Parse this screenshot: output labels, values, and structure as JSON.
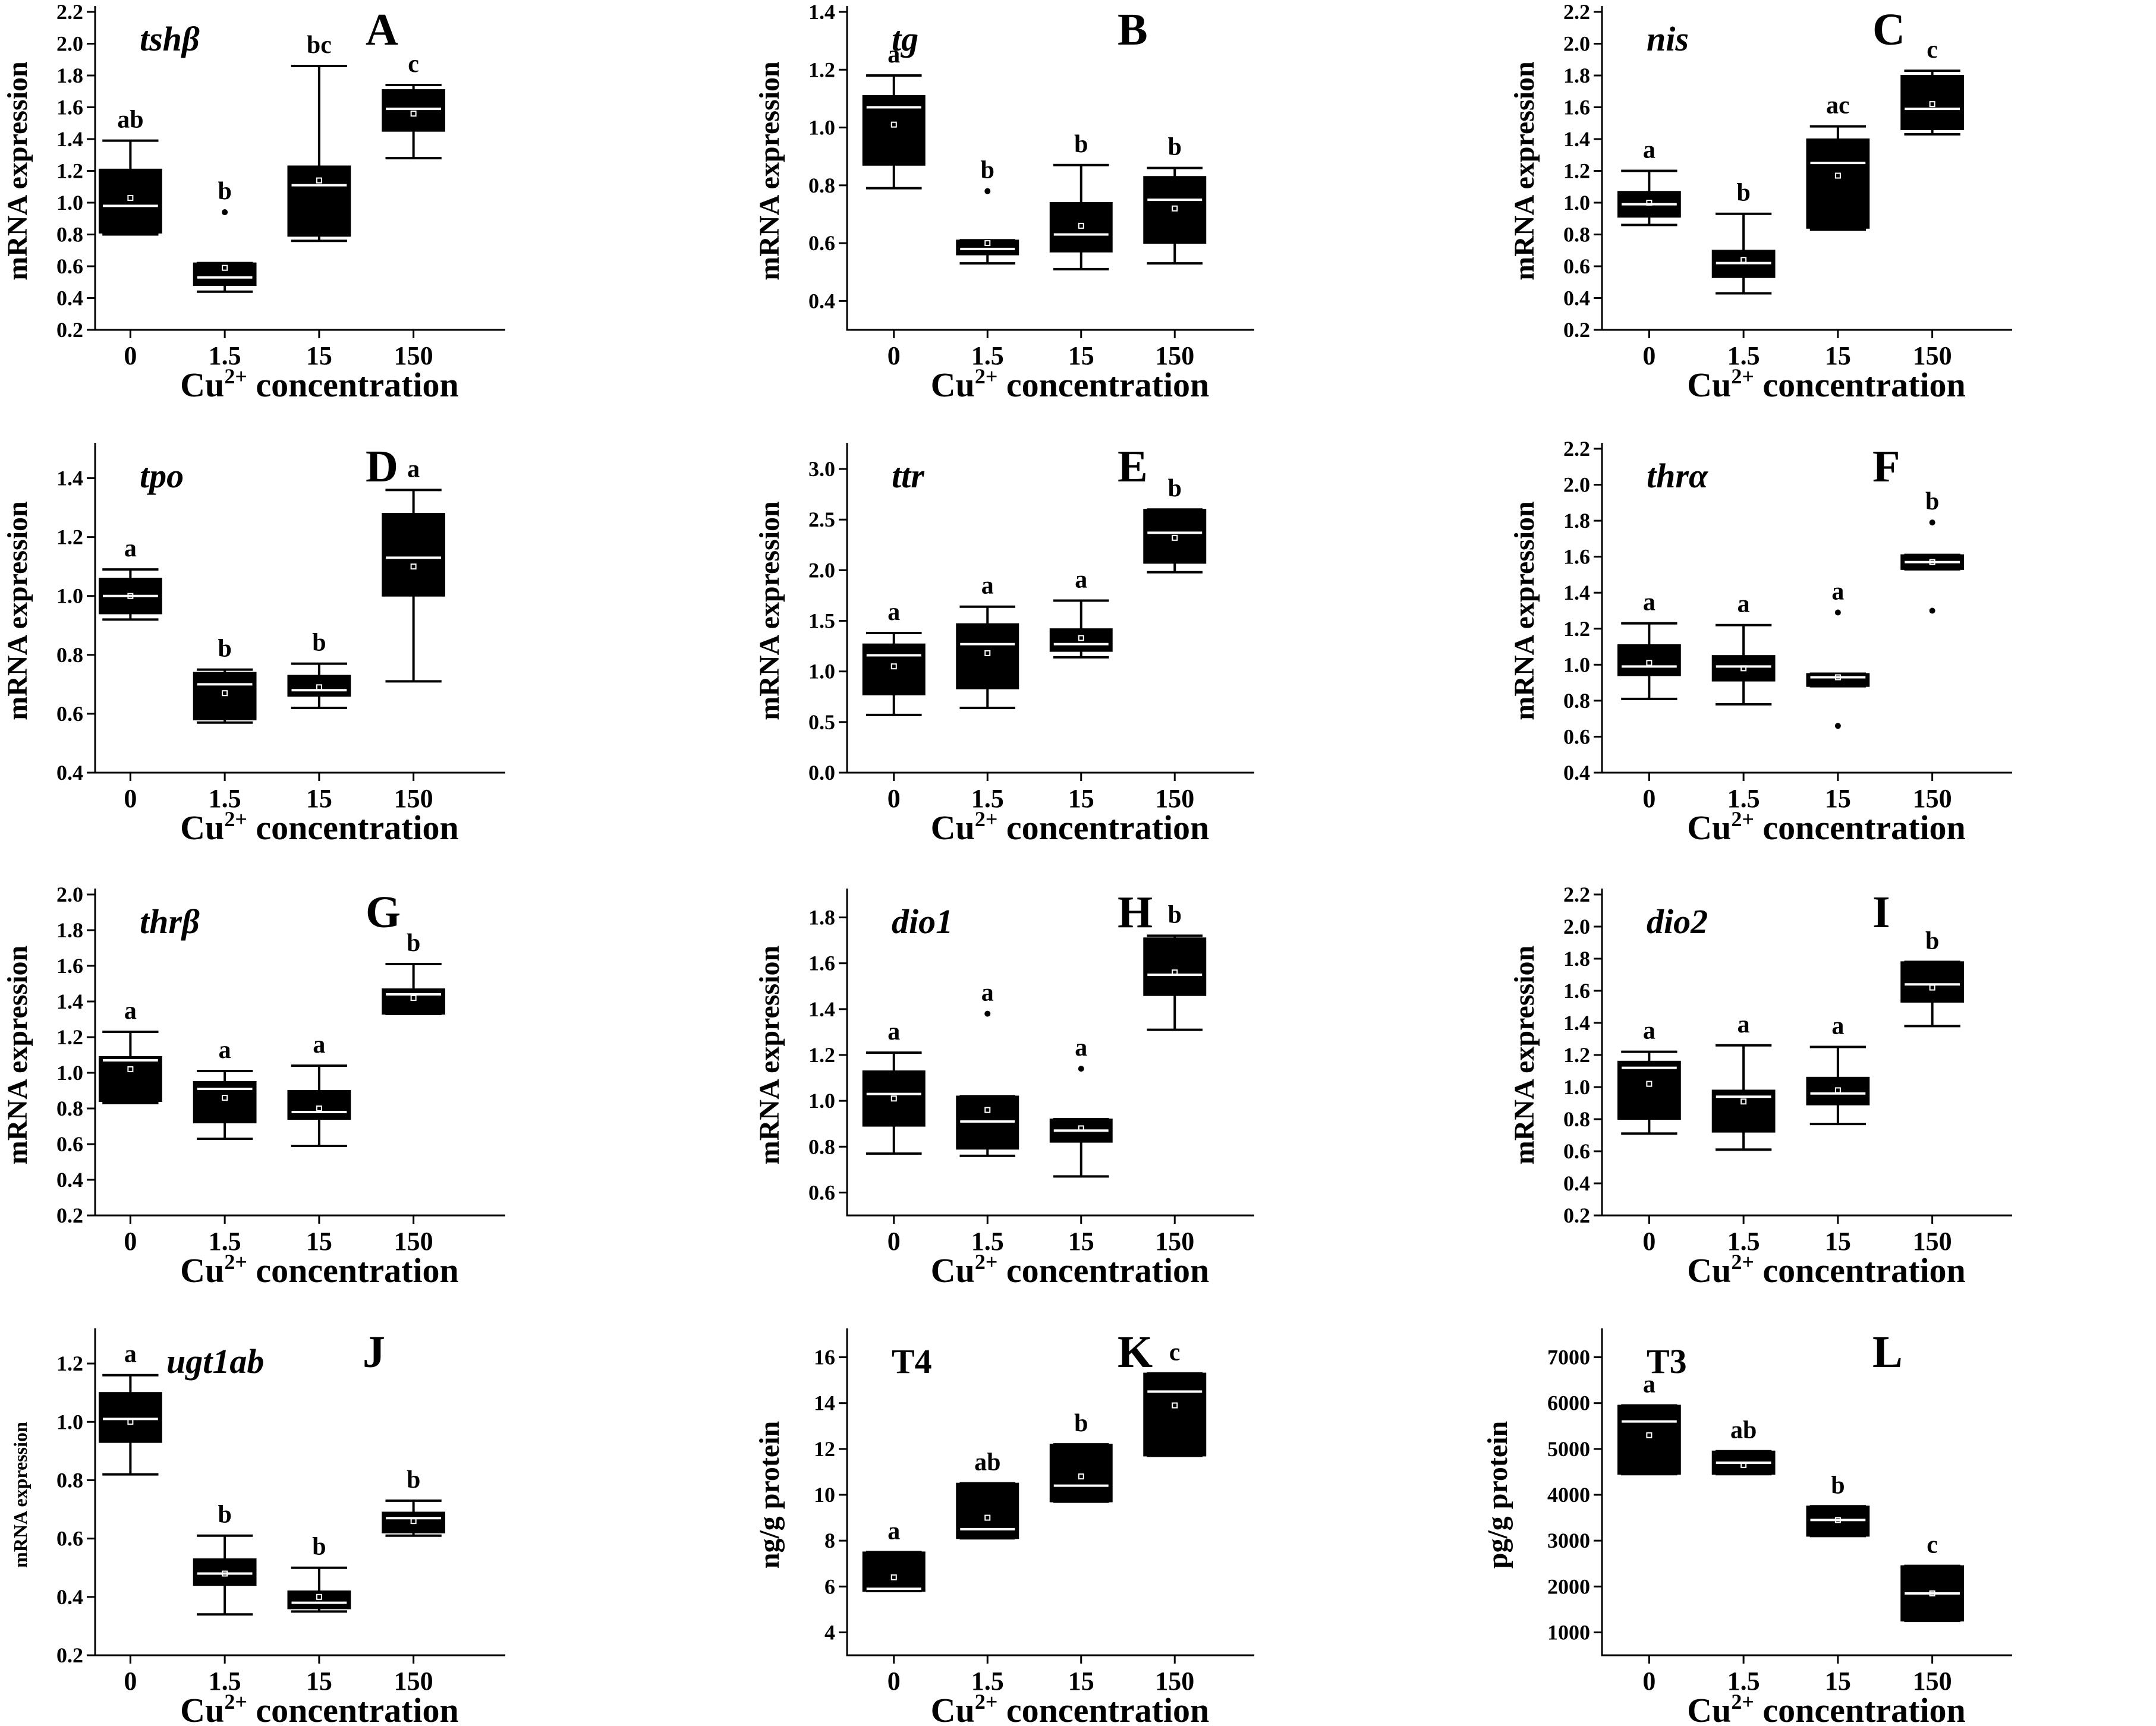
{
  "chart_data": [
    {
      "type": "box",
      "panel": "A",
      "title": "tshβ",
      "title_style": "italic",
      "ylabel": "mRNA expression",
      "xlabel": "Cu",
      "xlabel_sup": "2+",
      "xlabel_rest": " concentration",
      "categories": [
        "0",
        "1.5",
        "15",
        "150"
      ],
      "ylim": [
        0.2,
        2.2
      ],
      "yticks": [
        "0.2",
        "0.4",
        "0.6",
        "0.8",
        "1.0",
        "1.2",
        "1.4",
        "1.6",
        "1.8",
        "2.0",
        "2.2"
      ],
      "boxes": [
        {
          "whislo": 0.8,
          "q1": 0.81,
          "med": 0.98,
          "q3": 1.21,
          "whishi": 1.39,
          "mean": 1.03,
          "outliers": [],
          "sig": "ab"
        },
        {
          "whislo": 0.44,
          "q1": 0.48,
          "med": 0.53,
          "q3": 0.62,
          "whishi": 0.62,
          "mean": 0.59,
          "outliers": [
            0.94
          ],
          "sig": "b"
        },
        {
          "whislo": 0.76,
          "q1": 0.79,
          "med": 1.11,
          "q3": 1.23,
          "whishi": 1.86,
          "mean": 1.14,
          "outliers": [],
          "sig": "bc"
        },
        {
          "whislo": 1.28,
          "q1": 1.45,
          "med": 1.59,
          "q3": 1.71,
          "whishi": 1.74,
          "mean": 1.56,
          "outliers": [],
          "sig": "c"
        }
      ]
    },
    {
      "type": "box",
      "panel": "B",
      "title": "tg",
      "title_style": "italic",
      "ylabel": "mRNA expression",
      "xlabel": "Cu",
      "xlabel_sup": "2+",
      "xlabel_rest": " concentration",
      "categories": [
        "0",
        "1.5",
        "15",
        "150"
      ],
      "ylim": [
        0.3,
        1.4
      ],
      "yticks": [
        "0.4",
        "0.6",
        "0.8",
        "1.0",
        "1.2",
        "1.4"
      ],
      "boxes": [
        {
          "whislo": 0.79,
          "q1": 0.87,
          "med": 1.07,
          "q3": 1.11,
          "whishi": 1.18,
          "mean": 1.01,
          "outliers": [],
          "sig": "a"
        },
        {
          "whislo": 0.53,
          "q1": 0.56,
          "med": 0.58,
          "q3": 0.61,
          "whishi": 0.61,
          "mean": 0.6,
          "outliers": [
            0.78
          ],
          "sig": "b"
        },
        {
          "whislo": 0.51,
          "q1": 0.57,
          "med": 0.63,
          "q3": 0.74,
          "whishi": 0.87,
          "mean": 0.66,
          "outliers": [],
          "sig": "b"
        },
        {
          "whislo": 0.53,
          "q1": 0.6,
          "med": 0.75,
          "q3": 0.83,
          "whishi": 0.86,
          "mean": 0.72,
          "outliers": [],
          "sig": "b"
        }
      ]
    },
    {
      "type": "box",
      "panel": "C",
      "title": "nis",
      "title_style": "italic",
      "ylabel": "mRNA expression",
      "xlabel": "Cu",
      "xlabel_sup": "2+",
      "xlabel_rest": " concentration",
      "categories": [
        "0",
        "1.5",
        "15",
        "150"
      ],
      "ylim": [
        0.2,
        2.2
      ],
      "yticks": [
        "0.2",
        "0.4",
        "0.6",
        "0.8",
        "1.0",
        "1.2",
        "1.4",
        "1.6",
        "1.8",
        "2.0",
        "2.2"
      ],
      "boxes": [
        {
          "whislo": 0.86,
          "q1": 0.91,
          "med": 0.99,
          "q3": 1.07,
          "whishi": 1.2,
          "mean": 1.0,
          "outliers": [],
          "sig": "a"
        },
        {
          "whislo": 0.43,
          "q1": 0.53,
          "med": 0.62,
          "q3": 0.7,
          "whishi": 0.93,
          "mean": 0.64,
          "outliers": [],
          "sig": "b"
        },
        {
          "whislo": 0.83,
          "q1": 0.84,
          "med": 1.25,
          "q3": 1.4,
          "whishi": 1.48,
          "mean": 1.17,
          "outliers": [],
          "sig": "ac"
        },
        {
          "whislo": 1.43,
          "q1": 1.46,
          "med": 1.59,
          "q3": 1.8,
          "whishi": 1.83,
          "mean": 1.62,
          "outliers": [],
          "sig": "c"
        }
      ]
    },
    {
      "type": "box",
      "panel": "D",
      "title": "tpo",
      "title_style": "italic",
      "ylabel": "mRNA expression",
      "xlabel": "Cu",
      "xlabel_sup": "2+",
      "xlabel_rest": " concentration",
      "categories": [
        "0",
        "1.5",
        "15",
        "150"
      ],
      "ylim": [
        0.4,
        1.5
      ],
      "yticks": [
        "0.4",
        "0.6",
        "0.8",
        "1.0",
        "1.2",
        "1.4"
      ],
      "boxes": [
        {
          "whislo": 0.92,
          "q1": 0.94,
          "med": 1.0,
          "q3": 1.06,
          "whishi": 1.09,
          "mean": 1.0,
          "outliers": [],
          "sig": "a"
        },
        {
          "whislo": 0.57,
          "q1": 0.58,
          "med": 0.7,
          "q3": 0.74,
          "whishi": 0.75,
          "mean": 0.67,
          "outliers": [],
          "sig": "b"
        },
        {
          "whislo": 0.62,
          "q1": 0.66,
          "med": 0.68,
          "q3": 0.73,
          "whishi": 0.77,
          "mean": 0.69,
          "outliers": [],
          "sig": "b"
        },
        {
          "whislo": 0.71,
          "q1": 1.0,
          "med": 1.13,
          "q3": 1.28,
          "whishi": 1.36,
          "mean": 1.1,
          "outliers": [],
          "sig": "a"
        }
      ]
    },
    {
      "type": "box",
      "panel": "E",
      "title": "ttr",
      "title_style": "italic",
      "ylabel": "mRNA expression",
      "xlabel": "Cu",
      "xlabel_sup": "2+",
      "xlabel_rest": " concentration",
      "categories": [
        "0",
        "1.5",
        "15",
        "150"
      ],
      "ylim": [
        0.0,
        3.2
      ],
      "yticks": [
        "0.0",
        "0.5",
        "1.0",
        "1.5",
        "2.0",
        "2.5",
        "3.0"
      ],
      "boxes": [
        {
          "whislo": 0.57,
          "q1": 0.77,
          "med": 1.16,
          "q3": 1.27,
          "whishi": 1.38,
          "mean": 1.05,
          "outliers": [],
          "sig": "a"
        },
        {
          "whislo": 0.64,
          "q1": 0.83,
          "med": 1.27,
          "q3": 1.47,
          "whishi": 1.64,
          "mean": 1.18,
          "outliers": [],
          "sig": "a"
        },
        {
          "whislo": 1.14,
          "q1": 1.2,
          "med": 1.27,
          "q3": 1.42,
          "whishi": 1.7,
          "mean": 1.33,
          "outliers": [],
          "sig": "a"
        },
        {
          "whislo": 1.98,
          "q1": 2.07,
          "med": 2.37,
          "q3": 2.6,
          "whishi": 2.6,
          "mean": 2.32,
          "outliers": [],
          "sig": "b"
        }
      ]
    },
    {
      "type": "box",
      "panel": "F",
      "title": "thrα",
      "title_style": "italic",
      "ylabel": "mRNA expression",
      "xlabel": "Cu",
      "xlabel_sup": "2+",
      "xlabel_rest": " concentration",
      "categories": [
        "0",
        "1.5",
        "15",
        "150"
      ],
      "ylim": [
        0.4,
        2.2
      ],
      "yticks": [
        "0.4",
        "0.6",
        "0.8",
        "1.0",
        "1.2",
        "1.4",
        "1.6",
        "1.8",
        "2.0",
        "2.2"
      ],
      "boxes": [
        {
          "whislo": 0.81,
          "q1": 0.94,
          "med": 0.99,
          "q3": 1.11,
          "whishi": 1.23,
          "mean": 1.01,
          "outliers": [],
          "sig": "a"
        },
        {
          "whislo": 0.78,
          "q1": 0.91,
          "med": 0.99,
          "q3": 1.05,
          "whishi": 1.22,
          "mean": 0.98,
          "outliers": [],
          "sig": "a"
        },
        {
          "whislo": 0.88,
          "q1": 0.88,
          "med": 0.93,
          "q3": 0.95,
          "whishi": 0.95,
          "mean": 0.93,
          "outliers": [
            1.29,
            0.66
          ],
          "sig": "a"
        },
        {
          "whislo": 1.53,
          "q1": 1.53,
          "med": 1.57,
          "q3": 1.61,
          "whishi": 1.61,
          "mean": 1.57,
          "outliers": [
            1.79,
            1.3
          ],
          "sig": "b"
        }
      ]
    },
    {
      "type": "box",
      "panel": "G",
      "title": "thrβ",
      "title_style": "italic",
      "ylabel": "mRNA expression",
      "xlabel": "Cu",
      "xlabel_sup": "2+",
      "xlabel_rest": " concentration",
      "categories": [
        "0",
        "1.5",
        "15",
        "150"
      ],
      "ylim": [
        0.2,
        2.0
      ],
      "yticks": [
        "0.2",
        "0.4",
        "0.6",
        "0.8",
        "1.0",
        "1.2",
        "1.4",
        "1.6",
        "1.8",
        "2.0"
      ],
      "boxes": [
        {
          "whislo": 0.83,
          "q1": 0.84,
          "med": 1.07,
          "q3": 1.09,
          "whishi": 1.23,
          "mean": 1.02,
          "outliers": [],
          "sig": "a"
        },
        {
          "whislo": 0.63,
          "q1": 0.72,
          "med": 0.91,
          "q3": 0.95,
          "whishi": 1.01,
          "mean": 0.86,
          "outliers": [],
          "sig": "a"
        },
        {
          "whislo": 0.59,
          "q1": 0.74,
          "med": 0.78,
          "q3": 0.9,
          "whishi": 1.04,
          "mean": 0.8,
          "outliers": [],
          "sig": "a"
        },
        {
          "whislo": 1.33,
          "q1": 1.33,
          "med": 1.44,
          "q3": 1.47,
          "whishi": 1.61,
          "mean": 1.42,
          "outliers": [],
          "sig": "b"
        }
      ]
    },
    {
      "type": "box",
      "panel": "H",
      "title": "dio1",
      "title_style": "italic",
      "ylabel": "mRNA expression",
      "xlabel": "Cu",
      "xlabel_sup": "2+",
      "xlabel_rest": " concentration",
      "categories": [
        "0",
        "1.5",
        "15",
        "150"
      ],
      "ylim": [
        0.5,
        1.9
      ],
      "yticks": [
        "0.6",
        "0.8",
        "1.0",
        "1.2",
        "1.4",
        "1.6",
        "1.8"
      ],
      "boxes": [
        {
          "whislo": 0.77,
          "q1": 0.89,
          "med": 1.03,
          "q3": 1.13,
          "whishi": 1.21,
          "mean": 1.01,
          "outliers": [],
          "sig": "a"
        },
        {
          "whislo": 0.76,
          "q1": 0.79,
          "med": 0.91,
          "q3": 1.02,
          "whishi": 1.02,
          "mean": 0.96,
          "outliers": [
            1.38
          ],
          "sig": "a"
        },
        {
          "whislo": 0.67,
          "q1": 0.82,
          "med": 0.87,
          "q3": 0.92,
          "whishi": 0.92,
          "mean": 0.88,
          "outliers": [
            1.14
          ],
          "sig": "a"
        },
        {
          "whislo": 1.31,
          "q1": 1.46,
          "med": 1.55,
          "q3": 1.71,
          "whishi": 1.72,
          "mean": 1.56,
          "outliers": [],
          "sig": "b"
        }
      ]
    },
    {
      "type": "box",
      "panel": "I",
      "title": "dio2",
      "title_style": "italic",
      "ylabel": "mRNA expression",
      "xlabel": "Cu",
      "xlabel_sup": "2+",
      "xlabel_rest": " concentration",
      "categories": [
        "0",
        "1.5",
        "15",
        "150"
      ],
      "ylim": [
        0.2,
        2.2
      ],
      "yticks": [
        "0.2",
        "0.4",
        "0.6",
        "0.8",
        "1.0",
        "1.2",
        "1.4",
        "1.6",
        "1.8",
        "2.0",
        "2.2"
      ],
      "boxes": [
        {
          "whislo": 0.71,
          "q1": 0.8,
          "med": 1.12,
          "q3": 1.16,
          "whishi": 1.22,
          "mean": 1.02,
          "outliers": [],
          "sig": "a"
        },
        {
          "whislo": 0.61,
          "q1": 0.72,
          "med": 0.94,
          "q3": 0.98,
          "whishi": 1.26,
          "mean": 0.91,
          "outliers": [],
          "sig": "a"
        },
        {
          "whislo": 0.77,
          "q1": 0.89,
          "med": 0.96,
          "q3": 1.06,
          "whishi": 1.25,
          "mean": 0.98,
          "outliers": [],
          "sig": "a"
        },
        {
          "whislo": 1.38,
          "q1": 1.53,
          "med": 1.64,
          "q3": 1.78,
          "whishi": 1.78,
          "mean": 1.62,
          "outliers": [],
          "sig": "b"
        }
      ]
    },
    {
      "type": "box",
      "panel": "J",
      "title": "ugt1ab",
      "title_style": "italic",
      "ylabel": "mRNA expression",
      "ylabel_small": true,
      "xlabel": "Cu",
      "xlabel_sup": "2+",
      "xlabel_rest": " concentration",
      "categories": [
        "0",
        "1.5",
        "15",
        "150"
      ],
      "ylim": [
        0.2,
        1.3
      ],
      "yticks": [
        "0.2",
        "0.4",
        "0.6",
        "0.8",
        "1.0",
        "1.2"
      ],
      "boxes": [
        {
          "whislo": 0.82,
          "q1": 0.93,
          "med": 1.01,
          "q3": 1.1,
          "whishi": 1.16,
          "mean": 1.0,
          "outliers": [],
          "sig": "a"
        },
        {
          "whislo": 0.34,
          "q1": 0.44,
          "med": 0.48,
          "q3": 0.53,
          "whishi": 0.61,
          "mean": 0.48,
          "outliers": [],
          "sig": "b"
        },
        {
          "whislo": 0.35,
          "q1": 0.36,
          "med": 0.38,
          "q3": 0.42,
          "whishi": 0.5,
          "mean": 0.4,
          "outliers": [],
          "sig": "b"
        },
        {
          "whislo": 0.61,
          "q1": 0.62,
          "med": 0.67,
          "q3": 0.69,
          "whishi": 0.73,
          "mean": 0.66,
          "outliers": [],
          "sig": "b"
        }
      ]
    },
    {
      "type": "box",
      "panel": "K",
      "title": "T4",
      "title_style": "normal",
      "ylabel": "ng/g protein",
      "xlabel": "Cu",
      "xlabel_sup": "2+",
      "xlabel_rest": " concentration",
      "categories": [
        "0",
        "1.5",
        "15",
        "150"
      ],
      "ylim": [
        3,
        17
      ],
      "yticks": [
        "4",
        "6",
        "8",
        "10",
        "12",
        "14",
        "16"
      ],
      "boxes": [
        {
          "whislo": 5.8,
          "q1": 5.8,
          "med": 5.9,
          "q3": 7.5,
          "whishi": 7.5,
          "mean": 6.4,
          "outliers": [],
          "sig": "a"
        },
        {
          "whislo": 8.1,
          "q1": 8.1,
          "med": 8.5,
          "q3": 10.5,
          "whishi": 10.5,
          "mean": 9.0,
          "outliers": [],
          "sig": "ab"
        },
        {
          "whislo": 9.7,
          "q1": 9.7,
          "med": 10.4,
          "q3": 12.2,
          "whishi": 12.2,
          "mean": 10.8,
          "outliers": [],
          "sig": "b"
        },
        {
          "whislo": 11.7,
          "q1": 11.7,
          "med": 14.5,
          "q3": 15.3,
          "whishi": 15.3,
          "mean": 13.9,
          "outliers": [],
          "sig": "c"
        }
      ]
    },
    {
      "type": "box",
      "panel": "L",
      "title": "T3",
      "title_style": "normal",
      "ylabel": "pg/g protein",
      "xlabel": "Cu",
      "xlabel_sup": "2+",
      "xlabel_rest": " concentration",
      "categories": [
        "0",
        "1.5",
        "15",
        "150"
      ],
      "ylim": [
        500,
        7500
      ],
      "yticks": [
        "1000",
        "2000",
        "3000",
        "4000",
        "5000",
        "6000",
        "7000"
      ],
      "boxes": [
        {
          "whislo": 4450,
          "q1": 4450,
          "med": 5600,
          "q3": 5950,
          "whishi": 5950,
          "mean": 5300,
          "outliers": [],
          "sig": "a"
        },
        {
          "whislo": 4450,
          "q1": 4450,
          "med": 4700,
          "q3": 4950,
          "whishi": 4950,
          "mean": 4650,
          "outliers": [],
          "sig": "ab"
        },
        {
          "whislo": 3100,
          "q1": 3100,
          "med": 3450,
          "q3": 3750,
          "whishi": 3750,
          "mean": 3450,
          "outliers": [],
          "sig": "b"
        },
        {
          "whislo": 1250,
          "q1": 1250,
          "med": 1850,
          "q3": 2450,
          "whishi": 2450,
          "mean": 1850,
          "outliers": [],
          "sig": "c"
        }
      ]
    }
  ]
}
